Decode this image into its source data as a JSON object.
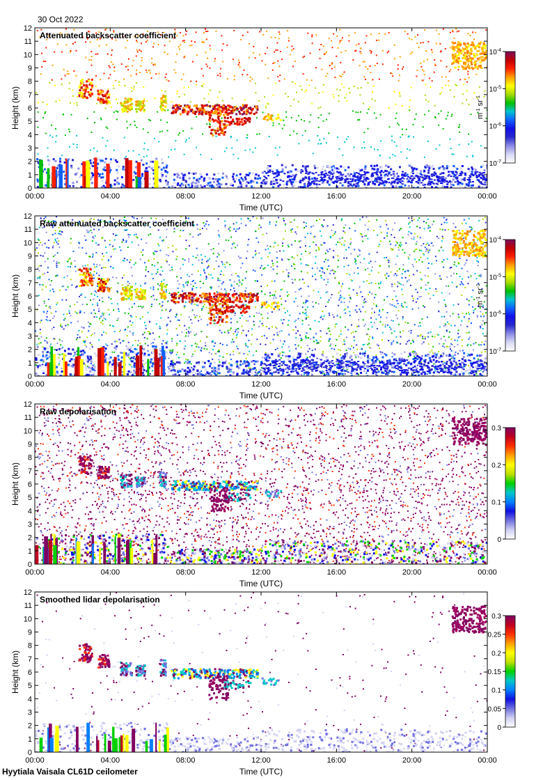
{
  "date_label": "30 Oct 2022",
  "site_label": "Hyytiala Vaisala CL61D ceilometer",
  "colors": {
    "attn_scale": [
      "#ffffff",
      "#d8d8f4",
      "#8c8ce6",
      "#2a2ad0",
      "#1010e8",
      "#1060ff",
      "#00c4d0",
      "#00c000",
      "#a8dc00",
      "#ffff00",
      "#ffa000",
      "#ff2000",
      "#c00000",
      "#7a1060"
    ],
    "depol_scale": [
      "#ffffff",
      "#cfcff2",
      "#7070e0",
      "#1010e0",
      "#0080ff",
      "#00c8c8",
      "#00d000",
      "#c0e000",
      "#ffff00",
      "#ffa000",
      "#ff3000",
      "#c00020",
      "#800060"
    ]
  },
  "chart_data": [
    {
      "type": "heatmap",
      "title": "Attenuated backscatter coefficient",
      "xlabel": "Time (UTC)",
      "ylabel": "Height (km)",
      "x_ticks": [
        "00:00",
        "04:00",
        "08:00",
        "12:00",
        "16:00",
        "20:00",
        "00:00"
      ],
      "y_ticks": [
        "0",
        "1",
        "2",
        "3",
        "4",
        "5",
        "6",
        "7",
        "8",
        "9",
        "10",
        "11",
        "12"
      ],
      "xlim": [
        0,
        24
      ],
      "ylim": [
        0,
        12
      ],
      "scale": "log",
      "colorbar_ticks": [
        {
          "base": "10",
          "exp": "-4"
        },
        {
          "base": "10",
          "exp": "-5"
        },
        {
          "base": "10",
          "exp": "-6"
        },
        {
          "base": "10",
          "exp": "-7"
        }
      ],
      "colorbar_unit": {
        "m": "m",
        "m_exp": "-1",
        "sr": "sr",
        "sr_exp": "-1"
      }
    },
    {
      "type": "heatmap",
      "title": "Raw attenuated backscatter coefficient",
      "xlabel": "Time (UTC)",
      "ylabel": "Height (km)",
      "x_ticks": [
        "00:00",
        "04:00",
        "08:00",
        "12:00",
        "16:00",
        "20:00",
        "00:00"
      ],
      "y_ticks": [
        "0",
        "1",
        "2",
        "3",
        "4",
        "5",
        "6",
        "7",
        "8",
        "9",
        "10",
        "11",
        "12"
      ],
      "xlim": [
        0,
        24
      ],
      "ylim": [
        0,
        12
      ],
      "scale": "log",
      "colorbar_ticks": [
        {
          "base": "10",
          "exp": "-4"
        },
        {
          "base": "10",
          "exp": "-5"
        },
        {
          "base": "10",
          "exp": "-6"
        },
        {
          "base": "10",
          "exp": "-7"
        }
      ],
      "colorbar_unit": {
        "m": "m",
        "m_exp": "-1",
        "sr": "sr",
        "sr_exp": "-1"
      }
    },
    {
      "type": "heatmap",
      "title": "Raw depolarisation",
      "xlabel": "Time (UTC)",
      "ylabel": "Height (km)",
      "x_ticks": [
        "00:00",
        "04:00",
        "08:00",
        "12:00",
        "16:00",
        "20:00",
        "00:00"
      ],
      "y_ticks": [
        "0",
        "1",
        "2",
        "3",
        "4",
        "5",
        "6",
        "7",
        "8",
        "9",
        "10",
        "11",
        "12"
      ],
      "xlim": [
        0,
        24
      ],
      "ylim": [
        0,
        12
      ],
      "scale": "linear",
      "colorbar_ticks": [
        "0.3",
        "0.2",
        "0.1",
        "0"
      ]
    },
    {
      "type": "heatmap",
      "title": "Smoothed lidar depolarisation",
      "xlabel": "Time (UTC)",
      "ylabel": "Height (km)",
      "x_ticks": [
        "00:00",
        "04:00",
        "08:00",
        "12:00",
        "16:00",
        "20:00",
        "00:00"
      ],
      "y_ticks": [
        "0",
        "1",
        "2",
        "3",
        "4",
        "5",
        "6",
        "7",
        "8",
        "9",
        "10",
        "11",
        "12"
      ],
      "xlim": [
        0,
        24
      ],
      "ylim": [
        0,
        12
      ],
      "scale": "linear",
      "colorbar_ticks": [
        "0.3",
        "0.25",
        "0.2",
        "0.15",
        "0.1",
        "0.05",
        "0"
      ]
    }
  ]
}
